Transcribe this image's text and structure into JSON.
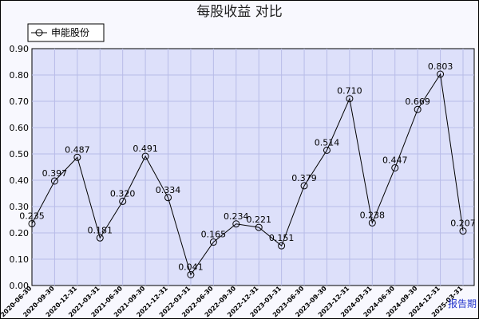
{
  "chart_data": {
    "type": "line",
    "title": "每股收益  对比",
    "xlabel": "报告期",
    "ylabel": "",
    "ylim": [
      0,
      0.9
    ],
    "yticks": [
      "0.00",
      "0.10",
      "0.20",
      "0.30",
      "0.40",
      "0.50",
      "0.60",
      "0.70",
      "0.80",
      "0.90"
    ],
    "grid": true,
    "legend_position": "top-left",
    "categories": [
      "2020-06-30",
      "2020-09-30",
      "2020-12-31",
      "2021-03-31",
      "2021-06-30",
      "2021-09-30",
      "2021-12-31",
      "2022-03-31",
      "2022-06-30",
      "2022-09-30",
      "2022-12-31",
      "2023-03-31",
      "2023-06-30",
      "2023-09-30",
      "2023-12-31",
      "2024-03-31",
      "2024-06-30",
      "2024-09-30",
      "2024-12-31",
      "2025-03-31"
    ],
    "series": [
      {
        "name": "申能股份",
        "values": [
          0.235,
          0.397,
          0.487,
          0.181,
          0.32,
          0.491,
          0.334,
          0.041,
          0.165,
          0.234,
          0.221,
          0.151,
          0.379,
          0.514,
          0.71,
          0.238,
          0.447,
          0.669,
          0.803,
          0.207
        ],
        "labels": [
          "0.235",
          "0.397",
          "0.487",
          "0.181",
          "0.320",
          "0.491",
          "0.334",
          "0.041",
          "0.165",
          "0.234",
          "0.221",
          "0.151",
          "0.379",
          "0.514",
          "0.710",
          "0.238",
          "0.447",
          "0.669",
          "0.803",
          "0.207"
        ]
      }
    ],
    "colors": {
      "plot_bg": "#dde0fa",
      "grid": "#b8bce8",
      "line": "#000000",
      "axis_name": "#2233cc"
    }
  }
}
